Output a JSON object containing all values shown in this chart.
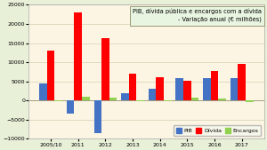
{
  "categories": [
    "2005/10",
    "2011",
    "2012",
    "2013",
    "2014",
    "2015",
    "2016",
    "2017"
  ],
  "pib": [
    4500,
    -3500,
    -8500,
    1800,
    3000,
    5800,
    5900,
    5900
  ],
  "divida": [
    13000,
    23000,
    16200,
    7000,
    6000,
    5200,
    7700,
    9600
  ],
  "encargos": [
    -200,
    1000,
    800,
    -200,
    -200,
    800,
    600,
    -300
  ],
  "colors": {
    "pib": "#4472c4",
    "divida": "#ff0000",
    "encargos": "#92d050"
  },
  "title_line1": "PIB, dívida pública e encargos com a dívida",
  "title_line2": "- Variação anual (€ milhões)",
  "ylim": [
    -10000,
    25000
  ],
  "yticks": [
    -10000,
    -5000,
    0,
    5000,
    10000,
    15000,
    20000,
    25000
  ],
  "background_outer": "#e8f0d8",
  "background_inner": "#fdf5e4",
  "legend_labels": [
    "PIB",
    "Dívida",
    "Encargos"
  ],
  "title_box_facecolor": "#e8f5e0",
  "title_box_edgecolor": "#999977",
  "grid_color": "#d0d0b0"
}
